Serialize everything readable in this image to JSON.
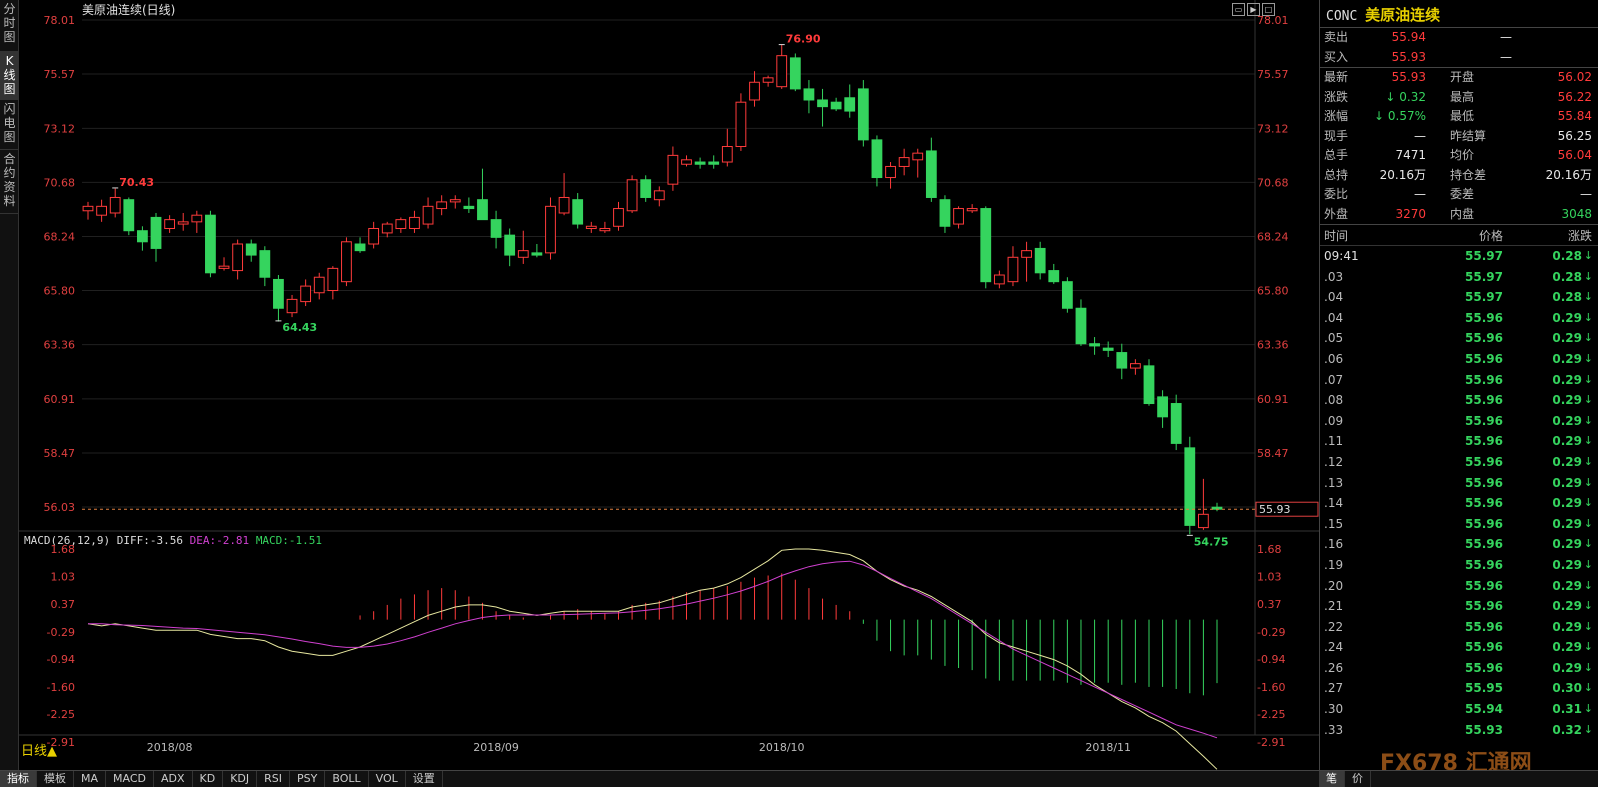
{
  "left_tabs": [
    "分时图",
    "K线图",
    "闪电图",
    "合约资料"
  ],
  "chart": {
    "title": "美原油连续(日线)",
    "price_axis_labels": [
      "78.01",
      "75.57",
      "73.12",
      "70.68",
      "68.24",
      "65.80",
      "63.36",
      "60.91",
      "58.47",
      "56.03"
    ],
    "current_price_box": "55.93",
    "high_marker": "76.90",
    "left_high_marker": "70.43",
    "low_marker_left": "64.43",
    "low_marker_right": "54.75",
    "macd_header": {
      "name": "MACD(26,12,9)",
      "diff": "DIFF:-3.56",
      "dea": "DEA:-2.81",
      "macd": "MACD:-1.51"
    },
    "macd_axis_labels": [
      "1.68",
      "1.03",
      "0.37",
      "-0.29",
      "-0.94",
      "-1.60",
      "-2.25",
      "-2.91"
    ],
    "date_labels": [
      "2018/08",
      "2018/09",
      "2018/10",
      "2018/11"
    ],
    "period": "日线▲"
  },
  "chart_data": {
    "type": "candlestick",
    "ylim": [
      54.0,
      78.5
    ],
    "candles": [
      {
        "o": 69.4,
        "h": 69.8,
        "l": 69.0,
        "c": 69.6
      },
      {
        "o": 69.2,
        "h": 69.9,
        "l": 68.9,
        "c": 69.6
      },
      {
        "o": 69.3,
        "h": 70.4,
        "l": 69.1,
        "c": 70.0
      },
      {
        "o": 69.9,
        "h": 70.0,
        "l": 68.3,
        "c": 68.5
      },
      {
        "o": 68.5,
        "h": 68.7,
        "l": 67.6,
        "c": 68.0
      },
      {
        "o": 69.1,
        "h": 69.3,
        "l": 67.1,
        "c": 67.7
      },
      {
        "o": 68.6,
        "h": 69.2,
        "l": 68.4,
        "c": 69.0
      },
      {
        "o": 68.8,
        "h": 69.3,
        "l": 68.5,
        "c": 68.9
      },
      {
        "o": 68.9,
        "h": 69.4,
        "l": 68.4,
        "c": 69.2
      },
      {
        "o": 69.2,
        "h": 69.4,
        "l": 66.4,
        "c": 66.6
      },
      {
        "o": 66.8,
        "h": 67.3,
        "l": 66.7,
        "c": 66.9
      },
      {
        "o": 66.7,
        "h": 68.1,
        "l": 66.3,
        "c": 67.9
      },
      {
        "o": 67.9,
        "h": 68.1,
        "l": 67.1,
        "c": 67.4
      },
      {
        "o": 67.6,
        "h": 67.8,
        "l": 66.0,
        "c": 66.4
      },
      {
        "o": 66.3,
        "h": 66.5,
        "l": 64.4,
        "c": 65.0
      },
      {
        "o": 64.8,
        "h": 65.6,
        "l": 64.6,
        "c": 65.4
      },
      {
        "o": 65.3,
        "h": 66.3,
        "l": 65.1,
        "c": 66.0
      },
      {
        "o": 65.7,
        "h": 66.6,
        "l": 65.4,
        "c": 66.4
      },
      {
        "o": 65.8,
        "h": 66.9,
        "l": 65.4,
        "c": 66.8
      },
      {
        "o": 66.2,
        "h": 68.2,
        "l": 66.0,
        "c": 68.0
      },
      {
        "o": 67.9,
        "h": 68.2,
        "l": 67.5,
        "c": 67.6
      },
      {
        "o": 67.9,
        "h": 68.9,
        "l": 67.7,
        "c": 68.6
      },
      {
        "o": 68.4,
        "h": 68.9,
        "l": 68.2,
        "c": 68.8
      },
      {
        "o": 68.6,
        "h": 69.1,
        "l": 68.4,
        "c": 69.0
      },
      {
        "o": 68.6,
        "h": 69.4,
        "l": 68.4,
        "c": 69.1
      },
      {
        "o": 68.8,
        "h": 70.0,
        "l": 68.6,
        "c": 69.6
      },
      {
        "o": 69.5,
        "h": 70.1,
        "l": 69.2,
        "c": 69.8
      },
      {
        "o": 69.8,
        "h": 70.1,
        "l": 69.5,
        "c": 69.9
      },
      {
        "o": 69.6,
        "h": 70.0,
        "l": 69.3,
        "c": 69.5
      },
      {
        "o": 69.9,
        "h": 71.3,
        "l": 69.0,
        "c": 69.0
      },
      {
        "o": 69.0,
        "h": 69.4,
        "l": 67.7,
        "c": 68.2
      },
      {
        "o": 68.3,
        "h": 68.6,
        "l": 66.9,
        "c": 67.4
      },
      {
        "o": 67.3,
        "h": 68.5,
        "l": 67.0,
        "c": 67.6
      },
      {
        "o": 67.5,
        "h": 67.9,
        "l": 67.3,
        "c": 67.4
      },
      {
        "o": 67.5,
        "h": 70.0,
        "l": 67.2,
        "c": 69.6
      },
      {
        "o": 69.3,
        "h": 71.1,
        "l": 69.2,
        "c": 70.0
      },
      {
        "o": 69.9,
        "h": 70.2,
        "l": 68.6,
        "c": 68.8
      },
      {
        "o": 68.6,
        "h": 68.9,
        "l": 68.4,
        "c": 68.7
      },
      {
        "o": 68.5,
        "h": 68.9,
        "l": 68.4,
        "c": 68.6
      },
      {
        "o": 68.7,
        "h": 69.8,
        "l": 68.5,
        "c": 69.5
      },
      {
        "o": 69.4,
        "h": 71.0,
        "l": 69.3,
        "c": 70.8
      },
      {
        "o": 70.8,
        "h": 71.0,
        "l": 69.8,
        "c": 70.0
      },
      {
        "o": 69.9,
        "h": 70.5,
        "l": 69.6,
        "c": 70.3
      },
      {
        "o": 70.6,
        "h": 72.3,
        "l": 70.3,
        "c": 71.9
      },
      {
        "o": 71.5,
        "h": 71.9,
        "l": 71.4,
        "c": 71.7
      },
      {
        "o": 71.6,
        "h": 71.8,
        "l": 71.3,
        "c": 71.5
      },
      {
        "o": 71.6,
        "h": 71.9,
        "l": 71.3,
        "c": 71.5
      },
      {
        "o": 71.6,
        "h": 73.1,
        "l": 71.4,
        "c": 72.3
      },
      {
        "o": 72.3,
        "h": 74.7,
        "l": 72.1,
        "c": 74.3
      },
      {
        "o": 74.4,
        "h": 75.7,
        "l": 74.1,
        "c": 75.2
      },
      {
        "o": 75.2,
        "h": 75.5,
        "l": 75.0,
        "c": 75.4
      },
      {
        "o": 75.0,
        "h": 76.9,
        "l": 74.9,
        "c": 76.4
      },
      {
        "o": 76.3,
        "h": 76.5,
        "l": 74.8,
        "c": 74.9
      },
      {
        "o": 74.9,
        "h": 75.3,
        "l": 73.8,
        "c": 74.4
      },
      {
        "o": 74.4,
        "h": 74.9,
        "l": 73.2,
        "c": 74.1
      },
      {
        "o": 74.3,
        "h": 74.5,
        "l": 73.9,
        "c": 74.0
      },
      {
        "o": 74.5,
        "h": 75.1,
        "l": 73.6,
        "c": 73.9
      },
      {
        "o": 74.9,
        "h": 75.3,
        "l": 72.3,
        "c": 72.6
      },
      {
        "o": 72.6,
        "h": 72.8,
        "l": 70.5,
        "c": 70.9
      },
      {
        "o": 70.9,
        "h": 71.6,
        "l": 70.4,
        "c": 71.4
      },
      {
        "o": 71.4,
        "h": 72.2,
        "l": 71.0,
        "c": 71.8
      },
      {
        "o": 71.7,
        "h": 72.2,
        "l": 70.9,
        "c": 72.0
      },
      {
        "o": 72.1,
        "h": 72.7,
        "l": 69.8,
        "c": 70.0
      },
      {
        "o": 69.9,
        "h": 70.1,
        "l": 68.4,
        "c": 68.7
      },
      {
        "o": 68.8,
        "h": 69.6,
        "l": 68.6,
        "c": 69.5
      },
      {
        "o": 69.4,
        "h": 69.7,
        "l": 69.3,
        "c": 69.5
      },
      {
        "o": 69.5,
        "h": 69.6,
        "l": 65.9,
        "c": 66.2
      },
      {
        "o": 66.1,
        "h": 66.7,
        "l": 65.9,
        "c": 66.5
      },
      {
        "o": 66.2,
        "h": 67.8,
        "l": 66.0,
        "c": 67.3
      },
      {
        "o": 67.3,
        "h": 68.0,
        "l": 66.2,
        "c": 67.6
      },
      {
        "o": 67.7,
        "h": 68.0,
        "l": 66.3,
        "c": 66.6
      },
      {
        "o": 66.7,
        "h": 67.0,
        "l": 66.1,
        "c": 66.2
      },
      {
        "o": 66.2,
        "h": 66.4,
        "l": 64.8,
        "c": 65.0
      },
      {
        "o": 65.0,
        "h": 65.4,
        "l": 63.3,
        "c": 63.4
      },
      {
        "o": 63.4,
        "h": 63.7,
        "l": 62.9,
        "c": 63.3
      },
      {
        "o": 63.2,
        "h": 63.5,
        "l": 62.8,
        "c": 63.1
      },
      {
        "o": 63.0,
        "h": 63.4,
        "l": 61.8,
        "c": 62.3
      },
      {
        "o": 62.3,
        "h": 62.7,
        "l": 62.0,
        "c": 62.5
      },
      {
        "o": 62.4,
        "h": 62.7,
        "l": 60.6,
        "c": 60.7
      },
      {
        "o": 61.0,
        "h": 61.3,
        "l": 59.6,
        "c": 60.1
      },
      {
        "o": 60.7,
        "h": 61.1,
        "l": 58.6,
        "c": 58.9
      },
      {
        "o": 58.7,
        "h": 59.2,
        "l": 54.8,
        "c": 55.2
      },
      {
        "o": 55.1,
        "h": 57.3,
        "l": 55.0,
        "c": 55.7
      },
      {
        "o": 56.02,
        "h": 56.22,
        "l": 55.84,
        "c": 55.93
      }
    ],
    "macd_ylim": [
      -3.3,
      1.9
    ],
    "macd_hist": [
      0.0,
      0.0,
      0.0,
      0.0,
      0.0,
      0.0,
      0.0,
      0.0,
      0.0,
      0.0,
      0.0,
      0.0,
      0.0,
      0.0,
      0.0,
      0.0,
      0.0,
      0.0,
      0.0,
      0.0,
      0.1,
      0.2,
      0.35,
      0.5,
      0.6,
      0.7,
      0.75,
      0.7,
      0.55,
      0.4,
      0.2,
      0.1,
      0.05,
      0.0,
      0.1,
      0.2,
      0.25,
      0.2,
      0.15,
      0.2,
      0.35,
      0.4,
      0.45,
      0.55,
      0.65,
      0.7,
      0.75,
      0.8,
      0.9,
      1.0,
      1.05,
      1.1,
      0.95,
      0.75,
      0.5,
      0.35,
      0.2,
      -0.1,
      -0.5,
      -0.75,
      -0.85,
      -0.85,
      -0.95,
      -1.1,
      -1.15,
      -1.2,
      -1.4,
      -1.45,
      -1.45,
      -1.45,
      -1.45,
      -1.45,
      -1.5,
      -1.55,
      -1.5,
      -1.5,
      -1.55,
      -1.5,
      -1.6,
      -1.6,
      -1.65,
      -1.75,
      -1.8,
      -1.51
    ],
    "diff_line": [
      -0.1,
      -0.15,
      -0.1,
      -0.15,
      -0.2,
      -0.25,
      -0.25,
      -0.25,
      -0.25,
      -0.35,
      -0.4,
      -0.45,
      -0.45,
      -0.5,
      -0.65,
      -0.75,
      -0.8,
      -0.85,
      -0.85,
      -0.75,
      -0.65,
      -0.5,
      -0.35,
      -0.2,
      -0.05,
      0.1,
      0.2,
      0.3,
      0.35,
      0.35,
      0.3,
      0.2,
      0.15,
      0.1,
      0.15,
      0.2,
      0.2,
      0.2,
      0.2,
      0.2,
      0.3,
      0.35,
      0.4,
      0.5,
      0.6,
      0.7,
      0.75,
      0.85,
      1.0,
      1.2,
      1.4,
      1.65,
      1.68,
      1.68,
      1.65,
      1.6,
      1.55,
      1.4,
      1.15,
      0.95,
      0.8,
      0.7,
      0.55,
      0.35,
      0.15,
      -0.05,
      -0.35,
      -0.55,
      -0.65,
      -0.75,
      -0.85,
      -0.95,
      -1.1,
      -1.3,
      -1.55,
      -1.75,
      -1.95,
      -2.1,
      -2.3,
      -2.45,
      -2.65,
      -2.95,
      -3.25,
      -3.56
    ],
    "dea_line": [
      -0.1,
      -0.1,
      -0.12,
      -0.13,
      -0.14,
      -0.16,
      -0.18,
      -0.2,
      -0.21,
      -0.24,
      -0.27,
      -0.3,
      -0.33,
      -0.36,
      -0.41,
      -0.46,
      -0.52,
      -0.57,
      -0.63,
      -0.66,
      -0.66,
      -0.63,
      -0.58,
      -0.5,
      -0.41,
      -0.3,
      -0.2,
      -0.1,
      -0.02,
      0.05,
      0.09,
      0.11,
      0.11,
      0.11,
      0.11,
      0.12,
      0.13,
      0.14,
      0.15,
      0.16,
      0.19,
      0.22,
      0.26,
      0.31,
      0.37,
      0.44,
      0.51,
      0.59,
      0.68,
      0.79,
      0.91,
      1.05,
      1.16,
      1.26,
      1.33,
      1.37,
      1.39,
      1.3,
      1.15,
      0.98,
      0.82,
      0.66,
      0.5,
      0.3,
      0.1,
      -0.1,
      -0.3,
      -0.5,
      -0.7,
      -0.85,
      -1.0,
      -1.15,
      -1.3,
      -1.45,
      -1.6,
      -1.75,
      -1.9,
      -2.05,
      -2.2,
      -2.35,
      -2.5,
      -2.6,
      -2.7,
      -2.81
    ]
  },
  "quote": {
    "code": "CONC",
    "name": "美原油连续",
    "sell_label": "卖出",
    "sell_price": "55.94",
    "sell_vol": "—",
    "buy_label": "买入",
    "buy_price": "55.93",
    "buy_vol": "—",
    "rows": [
      {
        "l1": "最新",
        "v1": "55.93",
        "c1": "red",
        "l2": "开盘",
        "v2": "56.02",
        "c2": "red"
      },
      {
        "l1": "涨跌",
        "v1": "0.32",
        "c1": "green",
        "a1": "↓",
        "l2": "最高",
        "v2": "56.22",
        "c2": "red"
      },
      {
        "l1": "涨幅",
        "v1": "0.57%",
        "c1": "green",
        "a1": "↓",
        "l2": "最低",
        "v2": "55.84",
        "c2": "red"
      },
      {
        "l1": "现手",
        "v1": "—",
        "c1": "white",
        "l2": "昨结算",
        "v2": "56.25",
        "c2": "white"
      },
      {
        "l1": "总手",
        "v1": "7471",
        "c1": "white",
        "l2": "均价",
        "v2": "56.04",
        "c2": "red"
      },
      {
        "l1": "总持",
        "v1": "20.16万",
        "c1": "white",
        "l2": "持仓差",
        "v2": "20.16万",
        "c2": "white"
      },
      {
        "l1": "委比",
        "v1": "—",
        "c1": "white",
        "l2": "委差",
        "v2": "—",
        "c2": "white"
      },
      {
        "l1": "外盘",
        "v1": "3270",
        "c1": "red",
        "l2": "内盘",
        "v2": "3048",
        "c2": "green"
      }
    ]
  },
  "ticks": {
    "header": {
      "time": "时间",
      "price": "价格",
      "change": "涨跌"
    },
    "rows": [
      {
        "t": "09:41",
        "p": "55.97",
        "c": "0.28"
      },
      {
        "t": ".03",
        "p": "55.97",
        "c": "0.28"
      },
      {
        "t": ".04",
        "p": "55.97",
        "c": "0.28"
      },
      {
        "t": ".04",
        "p": "55.96",
        "c": "0.29"
      },
      {
        "t": ".05",
        "p": "55.96",
        "c": "0.29"
      },
      {
        "t": ".06",
        "p": "55.96",
        "c": "0.29"
      },
      {
        "t": ".07",
        "p": "55.96",
        "c": "0.29"
      },
      {
        "t": ".08",
        "p": "55.96",
        "c": "0.29"
      },
      {
        "t": ".09",
        "p": "55.96",
        "c": "0.29"
      },
      {
        "t": ".11",
        "p": "55.96",
        "c": "0.29"
      },
      {
        "t": ".12",
        "p": "55.96",
        "c": "0.29"
      },
      {
        "t": ".13",
        "p": "55.96",
        "c": "0.29"
      },
      {
        "t": ".14",
        "p": "55.96",
        "c": "0.29"
      },
      {
        "t": ".15",
        "p": "55.96",
        "c": "0.29"
      },
      {
        "t": ".16",
        "p": "55.96",
        "c": "0.29"
      },
      {
        "t": ".19",
        "p": "55.96",
        "c": "0.29"
      },
      {
        "t": ".20",
        "p": "55.96",
        "c": "0.29"
      },
      {
        "t": ".21",
        "p": "55.96",
        "c": "0.29"
      },
      {
        "t": ".22",
        "p": "55.96",
        "c": "0.29"
      },
      {
        "t": ".24",
        "p": "55.96",
        "c": "0.29"
      },
      {
        "t": ".26",
        "p": "55.96",
        "c": "0.29"
      },
      {
        "t": ".27",
        "p": "55.95",
        "c": "0.30"
      },
      {
        "t": ".30",
        "p": "55.94",
        "c": "0.31"
      },
      {
        "t": ".33",
        "p": "55.93",
        "c": "0.32"
      }
    ]
  },
  "bottom_tabs": [
    "指标",
    "模板",
    "MA",
    "MACD",
    "ADX",
    "KD",
    "KDJ",
    "RSI",
    "PSY",
    "BOLL",
    "VOL",
    "设置"
  ],
  "bottom_right_tabs": [
    "笔",
    "价"
  ],
  "watermark": "FX678 汇通网",
  "colors": {
    "up": "#ff3b3b",
    "down": "#35d45e",
    "diff": "#e8e8a0",
    "dea": "#d040d0",
    "price_line": "#e08040"
  }
}
